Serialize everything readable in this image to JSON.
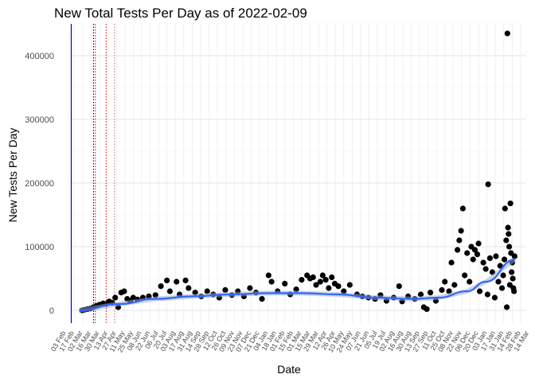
{
  "chart_data": {
    "type": "scatter",
    "title": "New Total Tests Per Day as of 2022-02-09",
    "xlabel": "Date",
    "ylabel": "New Tests Per Day",
    "ylim": [
      -20000,
      450000
    ],
    "y_ticks": [
      0,
      100000,
      200000,
      300000,
      400000
    ],
    "y_tick_labels": [
      "0",
      "100000",
      "200000",
      "300000",
      "400000"
    ],
    "x_range": [
      "2020-02-10",
      "2022-03-08"
    ],
    "x_tick_labels": [
      "03 Feb",
      "17 Feb",
      "02 Mar",
      "16 Mar",
      "30 Mar",
      "13 Apr",
      "27 Apr",
      "11 May",
      "25 May",
      "08 Jun",
      "22 Jun",
      "06 Jul",
      "20 Jul",
      "03 Aug",
      "17 Aug",
      "31 Aug",
      "14 Sep",
      "28 Sep",
      "12 Oct",
      "26 Oct",
      "09 Nov",
      "23 Nov",
      "07 Dec",
      "21 Dec",
      "04 Jan",
      "18 Jan",
      "01 Feb",
      "15 Feb",
      "01 Mar",
      "15 Mar",
      "29 Mar",
      "12 Apr",
      "26 Apr",
      "10 May",
      "24 May",
      "07 Jun",
      "21 Jun",
      "05 Jul",
      "19 Jul",
      "02 Aug",
      "16 Aug",
      "30 Aug",
      "13 Sep",
      "27 Sep",
      "11 Oct",
      "25 Oct",
      "08 Nov",
      "22 Nov",
      "06 Dec",
      "20 Dec",
      "03 Jan",
      "17 Jan",
      "31 Jan",
      "14 Feb",
      "28 Feb",
      "14 Mar"
    ],
    "grid": true,
    "vertical_markers": [
      {
        "x": "2020-02-12",
        "color": "#0000cc",
        "style": "solid"
      },
      {
        "x": "2020-03-20",
        "color": "#000000",
        "style": "dotted"
      },
      {
        "x": "2020-03-23",
        "color": "#cc0000",
        "style": "dotted"
      },
      {
        "x": "2020-04-10",
        "color": "#cc0000",
        "style": "dotted"
      },
      {
        "x": "2020-04-24",
        "color": "#cc6666",
        "style": "dotted"
      }
    ],
    "points": [
      {
        "x": "2020-03-01",
        "y": 0
      },
      {
        "x": "2020-03-05",
        "y": 1000
      },
      {
        "x": "2020-03-10",
        "y": 2000
      },
      {
        "x": "2020-03-15",
        "y": 3000
      },
      {
        "x": "2020-03-20",
        "y": 5000
      },
      {
        "x": "2020-03-25",
        "y": 7000
      },
      {
        "x": "2020-03-30",
        "y": 9000
      },
      {
        "x": "2020-04-05",
        "y": 11000
      },
      {
        "x": "2020-04-10",
        "y": 10000
      },
      {
        "x": "2020-04-15",
        "y": 14000
      },
      {
        "x": "2020-04-20",
        "y": 12000
      },
      {
        "x": "2020-04-25",
        "y": 20000
      },
      {
        "x": "2020-04-30",
        "y": 5000
      },
      {
        "x": "2020-05-05",
        "y": 28000
      },
      {
        "x": "2020-05-10",
        "y": 30000
      },
      {
        "x": "2020-05-15",
        "y": 18000
      },
      {
        "x": "2020-05-20",
        "y": 15000
      },
      {
        "x": "2020-05-25",
        "y": 20000
      },
      {
        "x": "2020-06-01",
        "y": 17000
      },
      {
        "x": "2020-06-10",
        "y": 20000
      },
      {
        "x": "2020-06-20",
        "y": 22000
      },
      {
        "x": "2020-07-01",
        "y": 24000
      },
      {
        "x": "2020-07-10",
        "y": 38000
      },
      {
        "x": "2020-07-20",
        "y": 47000
      },
      {
        "x": "2020-07-25",
        "y": 30000
      },
      {
        "x": "2020-08-05",
        "y": 45000
      },
      {
        "x": "2020-08-10",
        "y": 25000
      },
      {
        "x": "2020-08-20",
        "y": 47000
      },
      {
        "x": "2020-08-25",
        "y": 35000
      },
      {
        "x": "2020-09-05",
        "y": 28000
      },
      {
        "x": "2020-09-15",
        "y": 22000
      },
      {
        "x": "2020-09-25",
        "y": 30000
      },
      {
        "x": "2020-10-05",
        "y": 25000
      },
      {
        "x": "2020-10-15",
        "y": 20000
      },
      {
        "x": "2020-10-25",
        "y": 32000
      },
      {
        "x": "2020-11-05",
        "y": 24000
      },
      {
        "x": "2020-11-15",
        "y": 30000
      },
      {
        "x": "2020-11-25",
        "y": 22000
      },
      {
        "x": "2020-12-05",
        "y": 35000
      },
      {
        "x": "2020-12-15",
        "y": 28000
      },
      {
        "x": "2020-12-25",
        "y": 18000
      },
      {
        "x": "2021-01-05",
        "y": 55000
      },
      {
        "x": "2021-01-10",
        "y": 45000
      },
      {
        "x": "2021-01-20",
        "y": 30000
      },
      {
        "x": "2021-02-01",
        "y": 42000
      },
      {
        "x": "2021-02-10",
        "y": 25000
      },
      {
        "x": "2021-02-20",
        "y": 33000
      },
      {
        "x": "2021-03-01",
        "y": 48000
      },
      {
        "x": "2021-03-10",
        "y": 55000
      },
      {
        "x": "2021-03-15",
        "y": 50000
      },
      {
        "x": "2021-03-20",
        "y": 52000
      },
      {
        "x": "2021-03-25",
        "y": 40000
      },
      {
        "x": "2021-04-01",
        "y": 45000
      },
      {
        "x": "2021-04-05",
        "y": 55000
      },
      {
        "x": "2021-04-10",
        "y": 48000
      },
      {
        "x": "2021-04-15",
        "y": 35000
      },
      {
        "x": "2021-04-20",
        "y": 52000
      },
      {
        "x": "2021-04-25",
        "y": 42000
      },
      {
        "x": "2021-05-01",
        "y": 38000
      },
      {
        "x": "2021-05-10",
        "y": 30000
      },
      {
        "x": "2021-05-20",
        "y": 40000
      },
      {
        "x": "2021-06-01",
        "y": 25000
      },
      {
        "x": "2021-06-10",
        "y": 22000
      },
      {
        "x": "2021-06-20",
        "y": 20000
      },
      {
        "x": "2021-07-01",
        "y": 18000
      },
      {
        "x": "2021-07-10",
        "y": 24000
      },
      {
        "x": "2021-07-20",
        "y": 15000
      },
      {
        "x": "2021-08-01",
        "y": 20000
      },
      {
        "x": "2021-08-10",
        "y": 38000
      },
      {
        "x": "2021-08-15",
        "y": 14000
      },
      {
        "x": "2021-08-25",
        "y": 22000
      },
      {
        "x": "2021-09-05",
        "y": 18000
      },
      {
        "x": "2021-09-15",
        "y": 25000
      },
      {
        "x": "2021-09-20",
        "y": 5000
      },
      {
        "x": "2021-09-25",
        "y": 2000
      },
      {
        "x": "2021-10-01",
        "y": 28000
      },
      {
        "x": "2021-10-10",
        "y": 15000
      },
      {
        "x": "2021-10-20",
        "y": 32000
      },
      {
        "x": "2021-10-25",
        "y": 45000
      },
      {
        "x": "2021-11-01",
        "y": 30000
      },
      {
        "x": "2021-11-05",
        "y": 75000
      },
      {
        "x": "2021-11-10",
        "y": 40000
      },
      {
        "x": "2021-11-15",
        "y": 95000
      },
      {
        "x": "2021-11-18",
        "y": 110000
      },
      {
        "x": "2021-11-21",
        "y": 125000
      },
      {
        "x": "2021-11-24",
        "y": 160000
      },
      {
        "x": "2021-11-27",
        "y": 55000
      },
      {
        "x": "2021-12-01",
        "y": 90000
      },
      {
        "x": "2021-12-05",
        "y": 45000
      },
      {
        "x": "2021-12-08",
        "y": 100000
      },
      {
        "x": "2021-12-11",
        "y": 80000
      },
      {
        "x": "2021-12-14",
        "y": 95000
      },
      {
        "x": "2021-12-18",
        "y": 88000
      },
      {
        "x": "2021-12-20",
        "y": 105000
      },
      {
        "x": "2021-12-22",
        "y": 30000
      },
      {
        "x": "2021-12-28",
        "y": 75000
      },
      {
        "x": "2022-01-01",
        "y": 65000
      },
      {
        "x": "2022-01-04",
        "y": 25000
      },
      {
        "x": "2022-01-05",
        "y": 198000
      },
      {
        "x": "2022-01-08",
        "y": 82000
      },
      {
        "x": "2022-01-12",
        "y": 60000
      },
      {
        "x": "2022-01-16",
        "y": 20000
      },
      {
        "x": "2022-01-18",
        "y": 85000
      },
      {
        "x": "2022-01-22",
        "y": 45000
      },
      {
        "x": "2022-01-25",
        "y": 70000
      },
      {
        "x": "2022-01-28",
        "y": 35000
      },
      {
        "x": "2022-01-30",
        "y": 55000
      },
      {
        "x": "2022-02-01",
        "y": 80000
      },
      {
        "x": "2022-02-02",
        "y": 160000
      },
      {
        "x": "2022-02-04",
        "y": 110000
      },
      {
        "x": "2022-02-05",
        "y": 5000
      },
      {
        "x": "2022-02-06",
        "y": 435000
      },
      {
        "x": "2022-02-07",
        "y": 130000
      },
      {
        "x": "2022-02-08",
        "y": 120000
      },
      {
        "x": "2022-02-09",
        "y": 100000
      },
      {
        "x": "2022-02-10",
        "y": 40000
      },
      {
        "x": "2022-02-11",
        "y": 168000
      },
      {
        "x": "2022-02-12",
        "y": 90000
      },
      {
        "x": "2022-02-13",
        "y": 60000
      },
      {
        "x": "2022-02-14",
        "y": 75000
      },
      {
        "x": "2022-02-15",
        "y": 50000
      },
      {
        "x": "2022-02-16",
        "y": 35000
      },
      {
        "x": "2022-02-17",
        "y": 30000
      },
      {
        "x": "2022-02-18",
        "y": 85000
      }
    ],
    "trend_line": {
      "color": "#3366ff",
      "x": [
        "2020-02-25",
        "2020-05-01",
        "2020-07-01",
        "2020-09-01",
        "2020-11-01",
        "2021-01-01",
        "2021-03-01",
        "2021-05-01",
        "2021-07-01",
        "2021-09-01",
        "2021-10-15",
        "2021-12-01",
        "2022-01-01",
        "2022-02-19"
      ],
      "y": [
        0,
        10000,
        18000,
        22000,
        25000,
        27000,
        27000,
        25000,
        20000,
        18000,
        20000,
        30000,
        45000,
        80000
      ]
    }
  }
}
